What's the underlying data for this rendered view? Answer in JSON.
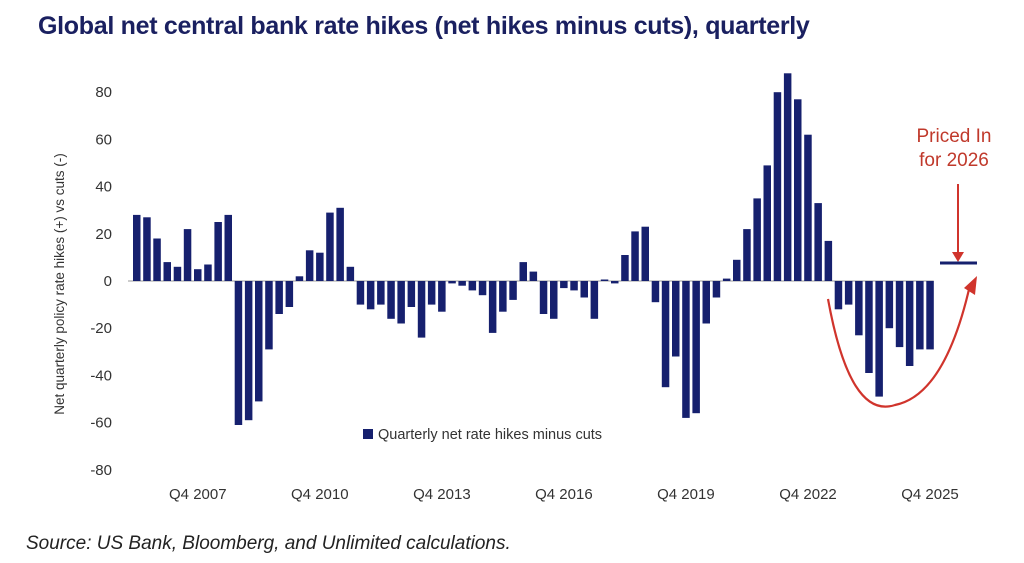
{
  "header": {
    "title": "Global net central bank rate hikes (net hikes minus cuts), quarterly"
  },
  "footer": {
    "source": "Source: US Bank, Bloomberg, and Unlimited calculations."
  },
  "colors": {
    "bar": "#16206e",
    "annotation": "#d0342c",
    "title": "#1a2060"
  },
  "chart_data": {
    "type": "bar",
    "title": "Global net central bank rate hikes (net hikes minus cuts), quarterly",
    "xlabel": "",
    "ylabel": "Net quarterly policy rate hikes (+) vs cuts (-)",
    "ylim": [
      -80,
      90
    ],
    "yticks": [
      80,
      60,
      40,
      20,
      0,
      -20,
      -40,
      -60,
      -80
    ],
    "ytick_labels": [
      "80",
      "60",
      "40",
      "20",
      "0",
      "-20",
      "-40",
      "-60",
      "-80"
    ],
    "xtick_labels": [
      "Q4 2007",
      "Q4 2010",
      "Q4 2013",
      "Q4 2016",
      "Q4 2019",
      "Q4 2022",
      "Q4 2025"
    ],
    "xtick_indices": [
      6,
      18,
      30,
      42,
      54,
      66,
      78
    ],
    "grid": false,
    "legend": {
      "position": "bottom-center",
      "entries": [
        "Quarterly net rate hikes minus cuts"
      ]
    },
    "series": [
      {
        "name": "Quarterly net rate hikes minus cuts",
        "start": "Q2 2006",
        "end": "Q4 2025",
        "values": [
          28,
          27,
          18,
          8,
          6,
          22,
          5,
          7,
          25,
          28,
          -61,
          -59,
          -51,
          -29,
          -14,
          -11,
          2,
          13,
          12,
          29,
          31,
          6,
          -10,
          -12,
          -10,
          -16,
          -18,
          -11,
          -24,
          -10,
          -13,
          -1,
          -2,
          -4,
          -6,
          -22,
          -13,
          -8,
          8,
          4,
          -14,
          -16,
          -3,
          -4,
          -7,
          -16,
          0,
          -1,
          11,
          21,
          23,
          -9,
          -45,
          -32,
          -58,
          -56,
          -18,
          -7,
          1,
          9,
          22,
          35,
          49,
          80,
          88,
          77,
          62,
          33,
          17,
          -12,
          -10,
          -23,
          -39,
          -49,
          -20,
          -28,
          -36,
          -29,
          -29
        ]
      }
    ],
    "annotations": [
      {
        "text_lines": [
          "Priced In",
          "for 2026"
        ],
        "type": "arrow-down",
        "target_value": 8,
        "marker": "horizontal-line"
      },
      {
        "type": "curved-arrow",
        "description": "U-shaped red arrow from late-2023 cuts rising toward 2026 priced-in level"
      }
    ]
  }
}
